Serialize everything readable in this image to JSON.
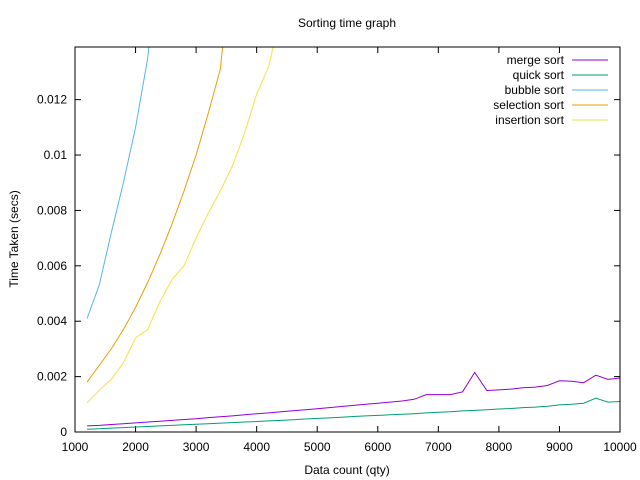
{
  "chart_data": {
    "type": "line",
    "title": "Sorting time graph",
    "xlabel": "Data count (qty)",
    "ylabel": "Time Taken (secs)",
    "xlim": [
      1000,
      10000
    ],
    "ylim": [
      0,
      0.0139
    ],
    "xticks": [
      1000,
      2000,
      3000,
      4000,
      5000,
      6000,
      7000,
      8000,
      9000,
      10000
    ],
    "yticks": [
      0,
      0.002,
      0.004,
      0.006,
      0.008,
      0.01,
      0.012
    ],
    "xtick_labels": [
      "1000",
      "2000",
      "3000",
      "4000",
      "5000",
      "6000",
      "7000",
      "8000",
      "9000",
      "10000"
    ],
    "ytick_labels": [
      "0",
      "0.002",
      "0.004",
      "0.006",
      "0.008",
      "0.01",
      "0.012"
    ],
    "grid": false,
    "legend_position": "top-right",
    "series": [
      {
        "name": "merge sort",
        "color": "#9400d3",
        "x": [
          1200,
          1400,
          1600,
          1800,
          2000,
          2200,
          2400,
          2600,
          2800,
          3000,
          3200,
          3400,
          3600,
          3800,
          4000,
          4200,
          4400,
          4600,
          4800,
          5000,
          5200,
          5400,
          5600,
          5800,
          6000,
          6200,
          6400,
          6600,
          6800,
          7000,
          7200,
          7400,
          7600,
          7800,
          8000,
          8200,
          8400,
          8600,
          8800,
          9000,
          9200,
          9400,
          9600,
          9800,
          10000
        ],
        "y": [
          0.00022,
          0.00024,
          0.00027,
          0.0003,
          0.00033,
          0.00036,
          0.00039,
          0.00042,
          0.00045,
          0.00048,
          0.00052,
          0.00055,
          0.00058,
          0.00062,
          0.00066,
          0.00069,
          0.00073,
          0.00077,
          0.0008,
          0.00084,
          0.00088,
          0.00092,
          0.00096,
          0.001,
          0.00104,
          0.00108,
          0.00112,
          0.00118,
          0.00135,
          0.00135,
          0.00135,
          0.00145,
          0.00215,
          0.0015,
          0.00152,
          0.00155,
          0.0016,
          0.00162,
          0.00168,
          0.00185,
          0.00183,
          0.00178,
          0.00205,
          0.0019,
          0.00195
        ]
      },
      {
        "name": "quick sort",
        "color": "#009e73",
        "x": [
          1200,
          1400,
          1600,
          1800,
          2000,
          2200,
          2400,
          2600,
          2800,
          3000,
          3200,
          3400,
          3600,
          3800,
          4000,
          4200,
          4400,
          4600,
          4800,
          5000,
          5200,
          5400,
          5600,
          5800,
          6000,
          6200,
          6400,
          6600,
          6800,
          7000,
          7200,
          7400,
          7600,
          7800,
          8000,
          8200,
          8400,
          8600,
          8800,
          9000,
          9200,
          9400,
          9600,
          9800,
          10000
        ],
        "y": [
          0.0001,
          0.00012,
          0.00014,
          0.00016,
          0.00018,
          0.0002,
          0.00022,
          0.00024,
          0.00026,
          0.00028,
          0.0003,
          0.00032,
          0.00034,
          0.00036,
          0.00038,
          0.0004,
          0.00042,
          0.00044,
          0.00047,
          0.00049,
          0.00051,
          0.00053,
          0.00056,
          0.00058,
          0.0006,
          0.00062,
          0.00064,
          0.00066,
          0.00069,
          0.00071,
          0.00073,
          0.00076,
          0.00078,
          0.0008,
          0.00083,
          0.00085,
          0.00088,
          0.0009,
          0.00093,
          0.00098,
          0.001,
          0.00104,
          0.00122,
          0.00108,
          0.0011
        ]
      },
      {
        "name": "bubble sort",
        "color": "#56b4e9",
        "x": [
          1200,
          1400,
          1600,
          1800,
          2000,
          2200,
          2250
        ],
        "y": [
          0.0041,
          0.0053,
          0.0072,
          0.009,
          0.011,
          0.0135,
          0.0145
        ]
      },
      {
        "name": "selection sort",
        "color": "#e69f00",
        "x": [
          1200,
          1400,
          1600,
          1800,
          2000,
          2200,
          2400,
          2600,
          2800,
          3000,
          3200,
          3400,
          3450
        ],
        "y": [
          0.0018,
          0.0024,
          0.003,
          0.0037,
          0.0045,
          0.0054,
          0.0064,
          0.0075,
          0.0087,
          0.01,
          0.0115,
          0.0131,
          0.0142
        ]
      },
      {
        "name": "insertion sort",
        "color": "#f0e442",
        "x": [
          1200,
          1400,
          1600,
          1800,
          2000,
          2200,
          2400,
          2600,
          2800,
          3000,
          3200,
          3400,
          3600,
          3800,
          4000,
          4200,
          4300
        ],
        "y": [
          0.00105,
          0.0015,
          0.0019,
          0.0025,
          0.0034,
          0.0037,
          0.0047,
          0.0055,
          0.006,
          0.007,
          0.0079,
          0.0087,
          0.0096,
          0.0108,
          0.0122,
          0.0132,
          0.0142
        ]
      }
    ]
  }
}
